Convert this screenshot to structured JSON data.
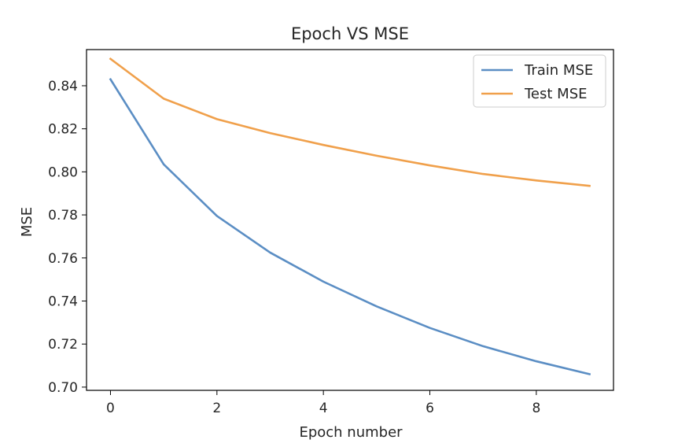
{
  "chart_data": {
    "type": "line",
    "title": "Epoch VS MSE",
    "xlabel": "Epoch number",
    "ylabel": "MSE",
    "x": [
      0,
      1,
      2,
      3,
      4,
      5,
      6,
      7,
      8,
      9
    ],
    "xlim": [
      -0.45,
      9.45
    ],
    "ylim": [
      0.6985,
      0.8568
    ],
    "xticks": [
      0,
      2,
      4,
      6,
      8
    ],
    "xtick_labels": [
      "0",
      "2",
      "4",
      "6",
      "8"
    ],
    "yticks": [
      0.7,
      0.72,
      0.74,
      0.76,
      0.78,
      0.8,
      0.82,
      0.84
    ],
    "ytick_labels": [
      "0.70",
      "0.72",
      "0.74",
      "0.76",
      "0.78",
      "0.80",
      "0.82",
      "0.84"
    ],
    "grid": false,
    "legend_position": "top-right",
    "series": [
      {
        "name": "Train MSE",
        "color": "#5b8ec4",
        "values": [
          0.843,
          0.8035,
          0.7795,
          0.7625,
          0.749,
          0.7375,
          0.7275,
          0.719,
          0.712,
          0.706
        ]
      },
      {
        "name": "Test MSE",
        "color": "#f0a04b",
        "values": [
          0.8525,
          0.834,
          0.8245,
          0.818,
          0.8125,
          0.8075,
          0.803,
          0.799,
          0.796,
          0.7935
        ]
      }
    ]
  }
}
